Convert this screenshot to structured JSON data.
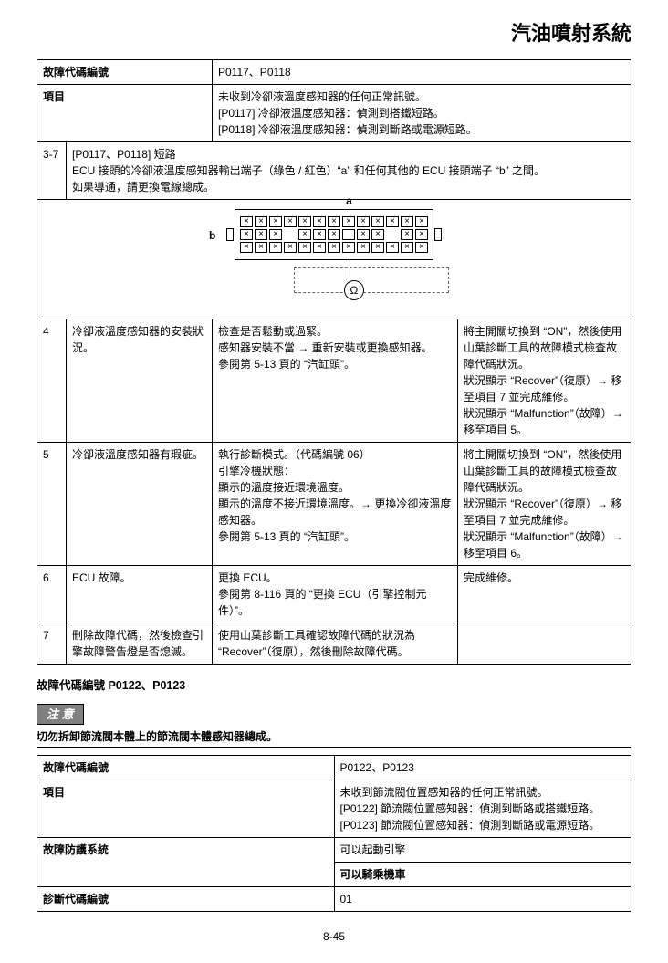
{
  "page_title": "汽油噴射系統",
  "page_number": "8-45",
  "table1": {
    "hdr_code_label": "故障代碼編號",
    "hdr_code_value": "P0117、P0118",
    "hdr_item_label": "項目",
    "hdr_item_value": "未收到冷卻液溫度感知器的任何正常訊號。\n[P0117] 冷卻液溫度感知器：偵測到搭鐵短路。\n[P0118] 冷卻液溫度感知器：偵測到斷路或電源短路。",
    "rows": {
      "r37": {
        "step": "3-7",
        "text": "[P0117、P0118] 短路\nECU 接頭的冷卻液溫度感知器輸出端子（綠色 / 紅色）“a” 和任何其他的 ECU 接頭端子 “b” 之間。\n如果導通，請更換電線總成。"
      },
      "diagram": {
        "label_a": "a",
        "label_b": "b",
        "ohm": "Ω"
      },
      "r4": {
        "step": "4",
        "item": "冷卻液溫度感知器的安裝狀況。",
        "action": "檢查是否鬆動或過緊。\n感知器安裝不當 → 重新安裝或更換感知器。\n參閱第 5-13 頁的 “汽缸頭”。",
        "result": "將主開關切換到 “ON”，然後使用山葉診斷工具的故障模式檢查故障代碼狀況。\n狀況顯示 “Recover”（復原）→ 移至項目 7 並完成維修。\n狀況顯示 “Malfunction”（故障）→ 移至項目 5。"
      },
      "r5": {
        "step": "5",
        "item": "冷卻液溫度感知器有瑕疵。",
        "action": "執行診斷模式。（代碼編號 06）\n引擎冷機狀態：\n顯示的溫度接近環境溫度。\n顯示的溫度不接近環境溫度。→ 更換冷卻液溫度感知器。\n參閱第 5-13 頁的 “汽缸頭”。",
        "result": "將主開關切換到 “ON”，然後使用山葉診斷工具的故障模式檢查故障代碼狀況。\n狀況顯示 “Recover”（復原）→ 移至項目 7 並完成維修。\n狀況顯示 “Malfunction”（故障）→ 移至項目 6。"
      },
      "r6": {
        "step": "6",
        "item": "ECU 故障。",
        "action": "更換 ECU。\n參閱第 8-116 頁的 “更換 ECU（引擎控制元件）”。",
        "result": "完成維修。"
      },
      "r7": {
        "step": "7",
        "item": "刪除故障代碼，然後檢查引擎故障警告燈是否熄滅。",
        "action": "使用山葉診斷工具確認故障代碼的狀況為 “Recover”（復原），然後刪除故障代碼。",
        "result": ""
      }
    }
  },
  "section2": {
    "heading": "故障代碼編號 P0122、P0123",
    "notice": "注 意",
    "warning": "切勿拆卸節流閥本體上的節流閥本體感知器總成。"
  },
  "table2": {
    "code_label": "故障代碼編號",
    "code_value": "P0122、P0123",
    "item_label": "項目",
    "item_value": "未收到節流閥位置感知器的任何正常訊號。\n[P0122] 節流閥位置感知器：偵測到斷路或搭鐵短路。\n[P0123] 節流閥位置感知器：偵測到斷路或電源短路。",
    "protect_label": "故障防護系統",
    "protect_v1": "可以起動引擎",
    "protect_v2": "可以騎乘機車",
    "diag_label": "診斷代碼編號",
    "diag_value": "01"
  }
}
